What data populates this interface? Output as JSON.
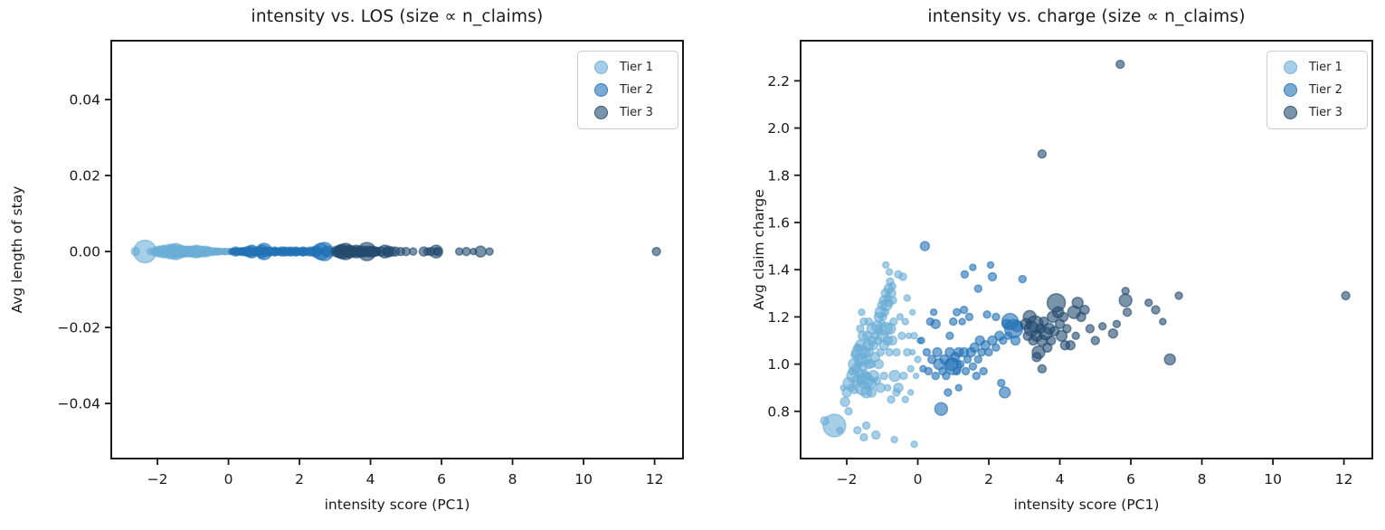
{
  "figure": {
    "background": "#ffffff",
    "text_color": "#1a1a1a",
    "spine_color": "#1a1a1a",
    "tiers": [
      {
        "name": "Tier 1",
        "color": "#6baed6"
      },
      {
        "name": "Tier 2",
        "color": "#2171b5"
      },
      {
        "name": "Tier 3",
        "color": "#234b70"
      }
    ],
    "marker_fill_opacity": 0.6,
    "marker_edge_opacity": 0.6
  },
  "bubbles": {
    "description": "Shared bubbles across both plots: same entity, x = intensity score (PC1), bubble size proportional to n_claims. Left plot plots every bubble at y = 0 (Avg length of stay); right plot plots y = Avg claim charge.",
    "point_format": "[intensity_score_pc1, avg_claim_charge, marker_radius_px]",
    "tiers": [
      {
        "name": "Tier 1",
        "points": [
          [
            -2.35,
            0.74,
            12.5
          ],
          [
            -2.62,
            0.76,
            4.5
          ],
          [
            -2.2,
            0.72,
            3.5
          ],
          [
            -2.05,
            0.84,
            5
          ],
          [
            -1.95,
            0.8,
            4
          ],
          [
            -1.52,
            0.69,
            4
          ],
          [
            -1.18,
            0.7,
            4.5
          ],
          [
            -1.7,
            0.72,
            4
          ],
          [
            -1.45,
            0.74,
            4
          ],
          [
            -0.66,
            0.68,
            3.5
          ],
          [
            -0.1,
            0.66,
            3.5
          ],
          [
            -2.0,
            0.88,
            5
          ],
          [
            -1.95,
            0.92,
            6
          ],
          [
            -1.88,
            0.9,
            4
          ],
          [
            -1.82,
            0.95,
            7
          ],
          [
            -1.78,
            0.89,
            4
          ],
          [
            -1.74,
            0.98,
            5
          ],
          [
            -1.7,
            0.93,
            6
          ],
          [
            -1.67,
            1.0,
            4
          ],
          [
            -1.64,
            0.96,
            5
          ],
          [
            -1.6,
            1.02,
            7
          ],
          [
            -1.6,
            0.93,
            4
          ],
          [
            -1.55,
            0.99,
            5
          ],
          [
            -1.5,
            1.05,
            6
          ],
          [
            -1.5,
            0.96,
            4
          ],
          [
            -1.45,
            1.02,
            5
          ],
          [
            -1.42,
            0.95,
            4
          ],
          [
            -1.4,
            1.08,
            6
          ],
          [
            -1.38,
            1.0,
            5
          ],
          [
            -1.35,
            1.05,
            4
          ],
          [
            -1.3,
            1.1,
            5
          ],
          [
            -1.3,
            1.0,
            4
          ],
          [
            -1.28,
            1.15,
            6
          ],
          [
            -1.25,
            1.08,
            5
          ],
          [
            -1.2,
            1.12,
            4
          ],
          [
            -1.2,
            1.03,
            5
          ],
          [
            -1.15,
            1.16,
            6
          ],
          [
            -1.12,
            1.1,
            4
          ],
          [
            -1.1,
            1.2,
            5
          ],
          [
            -1.08,
            1.14,
            4
          ],
          [
            -1.05,
            1.22,
            6
          ],
          [
            -1.02,
            1.17,
            4
          ],
          [
            -1.0,
            1.25,
            5
          ],
          [
            -0.98,
            1.2,
            4
          ],
          [
            -0.95,
            1.27,
            5
          ],
          [
            -0.92,
            1.22,
            4
          ],
          [
            -0.9,
            1.3,
            5
          ],
          [
            -0.88,
            1.25,
            6
          ],
          [
            -0.85,
            1.28,
            4
          ],
          [
            -0.82,
            1.32,
            5
          ],
          [
            -0.8,
            1.26,
            4
          ],
          [
            -0.78,
            1.35,
            4
          ],
          [
            -0.75,
            1.3,
            5
          ],
          [
            -0.72,
            1.33,
            4
          ],
          [
            -0.7,
            1.27,
            4
          ],
          [
            -0.9,
            1.42,
            3.5
          ],
          [
            -0.8,
            1.39,
            3.5
          ],
          [
            -1.55,
            0.9,
            8
          ],
          [
            -1.45,
            0.88,
            6
          ],
          [
            -1.35,
            0.92,
            7
          ],
          [
            -1.48,
            0.93,
            9
          ],
          [
            -1.3,
            0.88,
            5
          ],
          [
            -1.25,
            0.95,
            6
          ],
          [
            -1.55,
            1.12,
            5
          ],
          [
            -1.6,
            1.08,
            6
          ],
          [
            -1.65,
            1.05,
            8
          ],
          [
            -1.7,
            1.07,
            4
          ],
          [
            -1.75,
            1.04,
            5
          ],
          [
            -1.42,
            1.12,
            5
          ],
          [
            -1.38,
            1.18,
            4
          ],
          [
            -1.52,
            1.18,
            4
          ],
          [
            -1.58,
            1.22,
            3.5
          ],
          [
            -1.62,
            1.15,
            4
          ],
          [
            -1.8,
            1.0,
            6
          ],
          [
            -1.85,
            0.97,
            4
          ],
          [
            -0.6,
            1.05,
            4
          ],
          [
            -0.55,
            1.38,
            4
          ],
          [
            -0.42,
            1.37,
            4
          ],
          [
            -0.5,
            1.2,
            3.5
          ],
          [
            -0.45,
            1.12,
            4
          ],
          [
            -0.35,
            1.18,
            3.5
          ],
          [
            -0.3,
            1.05,
            4
          ],
          [
            -0.25,
            1.12,
            3
          ],
          [
            -0.2,
            0.98,
            3.5
          ],
          [
            -0.15,
            1.05,
            3
          ],
          [
            -0.1,
            1.12,
            3.5
          ],
          [
            -0.05,
            0.95,
            3
          ],
          [
            0.0,
            1.02,
            3.5
          ],
          [
            0.05,
            1.1,
            3
          ],
          [
            -0.4,
            0.95,
            4
          ],
          [
            -0.55,
            0.9,
            5
          ],
          [
            -0.65,
            0.95,
            6
          ],
          [
            -0.6,
            0.88,
            4
          ],
          [
            -0.35,
            0.85,
            3.5
          ],
          [
            -0.2,
            0.88,
            3
          ],
          [
            -0.72,
            1.1,
            5
          ],
          [
            -0.68,
            1.18,
            4
          ],
          [
            -0.78,
            1.15,
            6
          ],
          [
            -0.85,
            1.1,
            5
          ],
          [
            -0.8,
            1.05,
            4
          ],
          [
            -0.9,
            1.15,
            7
          ],
          [
            -0.95,
            1.08,
            5
          ],
          [
            -1.0,
            1.12,
            6
          ],
          [
            -1.05,
            1.05,
            4
          ],
          [
            -1.1,
            1.0,
            5
          ],
          [
            -0.95,
            0.95,
            4
          ],
          [
            -0.85,
            0.9,
            3.5
          ],
          [
            -0.75,
            0.85,
            4
          ],
          [
            -1.15,
            0.93,
            4
          ],
          [
            -1.05,
            0.9,
            5
          ],
          [
            -2.1,
            0.9,
            3
          ],
          [
            -0.3,
            1.28,
            3.5
          ],
          [
            -0.15,
            1.22,
            3
          ]
        ]
      },
      {
        "name": "Tier 2",
        "points": [
          [
            0.2,
            1.5,
            5
          ],
          [
            0.66,
            0.81,
            7
          ],
          [
            0.3,
            0.97,
            4
          ],
          [
            0.4,
            1.02,
            4.5
          ],
          [
            0.5,
            0.95,
            4
          ],
          [
            0.55,
            1.05,
            5
          ],
          [
            0.6,
            1.0,
            6
          ],
          [
            0.7,
            0.97,
            4
          ],
          [
            0.75,
            1.02,
            5
          ],
          [
            0.8,
            0.95,
            4
          ],
          [
            0.9,
            1.05,
            5
          ],
          [
            0.95,
            1.0,
            7
          ],
          [
            1.0,
            0.99,
            9
          ],
          [
            1.05,
            1.03,
            5
          ],
          [
            1.1,
            0.97,
            4
          ],
          [
            1.15,
            1.05,
            5
          ],
          [
            1.2,
            1.0,
            4
          ],
          [
            1.3,
            1.05,
            5
          ],
          [
            1.35,
            0.97,
            4
          ],
          [
            1.4,
            1.02,
            4
          ],
          [
            1.5,
            1.05,
            5
          ],
          [
            1.55,
            0.99,
            4
          ],
          [
            1.6,
            1.07,
            5
          ],
          [
            1.7,
            1.02,
            4
          ],
          [
            1.75,
            1.1,
            5
          ],
          [
            1.8,
            1.05,
            4
          ],
          [
            1.9,
            1.08,
            5
          ],
          [
            2.0,
            1.05,
            4
          ],
          [
            2.1,
            1.1,
            5
          ],
          [
            2.2,
            1.07,
            4
          ],
          [
            2.3,
            1.12,
            5
          ],
          [
            2.4,
            1.1,
            4
          ],
          [
            0.35,
            1.18,
            4
          ],
          [
            0.5,
            1.17,
            5
          ],
          [
            0.45,
            1.22,
            3.5
          ],
          [
            0.9,
            1.12,
            4
          ],
          [
            1.0,
            1.18,
            4
          ],
          [
            1.1,
            1.22,
            4
          ],
          [
            1.25,
            1.18,
            3.5
          ],
          [
            1.3,
            1.23,
            4
          ],
          [
            1.45,
            1.2,
            4
          ],
          [
            1.32,
            1.38,
            4
          ],
          [
            1.7,
            1.32,
            4
          ],
          [
            2.1,
            1.37,
            4.5
          ],
          [
            2.95,
            1.36,
            4
          ],
          [
            1.95,
            1.21,
            4
          ],
          [
            2.2,
            1.2,
            4
          ],
          [
            2.5,
            1.17,
            5
          ],
          [
            2.55,
            1.12,
            4
          ],
          [
            2.6,
            1.18,
            9
          ],
          [
            2.7,
            1.15,
            10
          ],
          [
            2.8,
            1.16,
            6
          ],
          [
            2.75,
            1.1,
            5
          ],
          [
            2.45,
            0.88,
            6
          ],
          [
            2.35,
            0.92,
            4
          ],
          [
            1.85,
            0.97,
            4
          ],
          [
            1.65,
            0.95,
            4
          ],
          [
            0.85,
            0.88,
            4
          ],
          [
            1.15,
            0.9,
            3.5
          ],
          [
            2.05,
            1.42,
            3.5
          ],
          [
            1.55,
            1.41,
            3.5
          ],
          [
            0.25,
            1.05,
            4
          ],
          [
            0.15,
            0.98,
            3.5
          ],
          [
            0.1,
            1.1,
            3.5
          ]
        ]
      },
      {
        "name": "Tier 3",
        "points": [
          [
            3.05,
            1.17,
            6
          ],
          [
            3.1,
            1.12,
            5
          ],
          [
            3.15,
            1.2,
            7
          ],
          [
            3.2,
            1.15,
            8
          ],
          [
            3.25,
            1.1,
            5
          ],
          [
            3.3,
            1.17,
            9
          ],
          [
            3.35,
            1.12,
            6
          ],
          [
            3.4,
            1.05,
            7
          ],
          [
            3.45,
            1.15,
            5
          ],
          [
            3.5,
            1.1,
            6
          ],
          [
            3.55,
            1.18,
            5
          ],
          [
            3.6,
            1.13,
            7
          ],
          [
            3.65,
            1.07,
            5
          ],
          [
            3.7,
            1.15,
            6
          ],
          [
            3.75,
            1.1,
            5
          ],
          [
            3.8,
            1.2,
            6
          ],
          [
            3.85,
            1.14,
            5
          ],
          [
            3.9,
            1.26,
            10
          ],
          [
            3.95,
            1.22,
            6
          ],
          [
            4.0,
            1.17,
            5
          ],
          [
            4.05,
            1.12,
            6
          ],
          [
            4.1,
            1.2,
            5
          ],
          [
            4.15,
            1.08,
            5
          ],
          [
            4.2,
            1.15,
            4.5
          ],
          [
            3.35,
            1.03,
            5
          ],
          [
            3.5,
            0.98,
            4.5
          ],
          [
            3.5,
            1.89,
            4.5
          ],
          [
            5.7,
            2.27,
            4.5
          ],
          [
            4.4,
            1.22,
            7
          ],
          [
            4.5,
            1.26,
            6
          ],
          [
            4.6,
            1.2,
            5
          ],
          [
            4.7,
            1.23,
            5
          ],
          [
            4.85,
            1.15,
            4.5
          ],
          [
            5.0,
            1.1,
            4.5
          ],
          [
            5.2,
            1.16,
            4
          ],
          [
            5.5,
            1.13,
            5
          ],
          [
            5.6,
            1.17,
            4
          ],
          [
            5.85,
            1.31,
            4
          ],
          [
            5.85,
            1.27,
            7
          ],
          [
            5.9,
            1.22,
            4.5
          ],
          [
            6.5,
            1.26,
            4
          ],
          [
            6.7,
            1.23,
            4.5
          ],
          [
            7.35,
            1.29,
            4
          ],
          [
            7.1,
            1.02,
            6
          ],
          [
            12.05,
            1.29,
            4.5
          ],
          [
            4.3,
            1.08,
            5
          ],
          [
            4.45,
            1.12,
            4
          ],
          [
            6.9,
            1.18,
            3.5
          ]
        ]
      }
    ]
  },
  "chart_data": [
    {
      "type": "scatter",
      "title": "intensity vs. LOS (size ∝ n_claims)",
      "xlabel": "intensity score (PC1)",
      "ylabel": "Avg length of stay",
      "xlim": [
        -3.3,
        12.8
      ],
      "ylim": [
        -0.0545,
        0.0555
      ],
      "xticks": [
        -2,
        0,
        2,
        4,
        6,
        8,
        10,
        12
      ],
      "xtick_labels": [
        "−2",
        "0",
        "2",
        "4",
        "6",
        "8",
        "10",
        "12"
      ],
      "yticks": [
        -0.04,
        -0.02,
        0,
        0.02,
        0.04
      ],
      "ytick_labels": [
        "−0.04",
        "−0.02",
        "0.00",
        "0.02",
        "0.04"
      ],
      "grid": false,
      "y_source": "zero",
      "note": "all bubbles plotted at y = 0.00",
      "legend": {
        "position": "upper right",
        "entries": [
          "Tier 1",
          "Tier 2",
          "Tier 3"
        ]
      }
    },
    {
      "type": "scatter",
      "title": "intensity vs. charge (size ∝ n_claims)",
      "xlabel": "intensity score (PC1)",
      "ylabel": "Avg claim charge",
      "xlim": [
        -3.3,
        12.8
      ],
      "ylim": [
        0.6,
        2.37
      ],
      "xticks": [
        -2,
        0,
        2,
        4,
        6,
        8,
        10,
        12
      ],
      "xtick_labels": [
        "−2",
        "0",
        "2",
        "4",
        "6",
        "8",
        "10",
        "12"
      ],
      "yticks": [
        0.8,
        1.0,
        1.2,
        1.4,
        1.6,
        1.8,
        2.0,
        2.2
      ],
      "ytick_labels": [
        "0.8",
        "1.0",
        "1.2",
        "1.4",
        "1.6",
        "1.8",
        "2.0",
        "2.2"
      ],
      "grid": false,
      "y_source": "charge",
      "legend": {
        "position": "upper right",
        "entries": [
          "Tier 1",
          "Tier 2",
          "Tier 3"
        ]
      }
    }
  ]
}
